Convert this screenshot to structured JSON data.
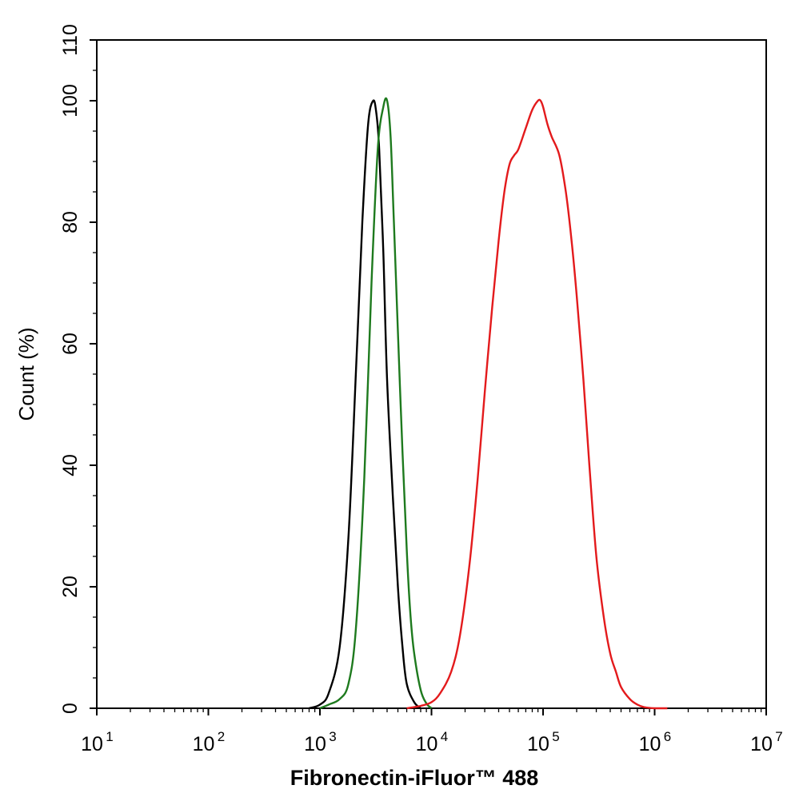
{
  "chart_data": {
    "type": "line",
    "title": "",
    "xlabel": "Fibronectin-iFluor™ 488",
    "ylabel": "Count  (%)",
    "x_scale": "log",
    "xlim": [
      10,
      10000000
    ],
    "ylim": [
      0,
      110
    ],
    "x_ticks": [
      {
        "value": 10,
        "base": "10",
        "exp": "1"
      },
      {
        "value": 100,
        "base": "10",
        "exp": "2"
      },
      {
        "value": 1000,
        "base": "10",
        "exp": "3"
      },
      {
        "value": 10000,
        "base": "10",
        "exp": "4"
      },
      {
        "value": 100000,
        "base": "10",
        "exp": "5"
      },
      {
        "value": 1000000,
        "base": "10",
        "exp": "6"
      },
      {
        "value": 10000000,
        "base": "10",
        "exp": "7"
      }
    ],
    "y_ticks": [
      0,
      20,
      40,
      60,
      80,
      100,
      110
    ],
    "grid": false,
    "legend": "none",
    "series": [
      {
        "color": "#000000",
        "x": [
          800,
          1000,
          1200,
          1500,
          1800,
          2100,
          2400,
          2700,
          3000,
          3200,
          3400,
          3700,
          4000,
          4500,
          5000,
          5500,
          6000,
          7000,
          8000
        ],
        "y": [
          0,
          0.6,
          2.5,
          10,
          28,
          55,
          80,
          96,
          100,
          98,
          92,
          75,
          54,
          35,
          20,
          10,
          4,
          1,
          0
        ]
      },
      {
        "color": "#1e7a1e",
        "x": [
          1000,
          1200,
          1500,
          1800,
          2100,
          2500,
          2900,
          3300,
          3700,
          4000,
          4300,
          4600,
          5000,
          5500,
          6000,
          6500,
          7000,
          8000,
          9000,
          10000
        ],
        "y": [
          0,
          0.6,
          1.5,
          4,
          13,
          38,
          70,
          92,
          99,
          100,
          94,
          80,
          62,
          42,
          26,
          15,
          9,
          3,
          0.8,
          0
        ]
      },
      {
        "color": "#e31a1c",
        "x": [
          6000,
          8000,
          10000,
          12000,
          15000,
          18000,
          22000,
          26000,
          30000,
          35000,
          40000,
          45000,
          50000,
          55000,
          60000,
          70000,
          80000,
          90000,
          95000,
          100000,
          110000,
          120000,
          140000,
          160000,
          180000,
          200000,
          230000,
          260000,
          300000,
          350000,
          400000,
          450000,
          500000,
          600000,
          700000,
          800000,
          1000000,
          1300000
        ],
        "y": [
          0,
          0.4,
          1,
          2.5,
          6,
          12,
          24,
          38,
          52,
          66,
          77,
          85,
          89.5,
          91,
          92,
          95.5,
          98.5,
          100,
          100,
          99,
          96,
          94,
          91,
          85,
          77,
          68,
          54,
          40,
          25,
          15,
          9,
          6,
          3.5,
          1.5,
          0.6,
          0.2,
          0,
          0
        ]
      }
    ]
  }
}
